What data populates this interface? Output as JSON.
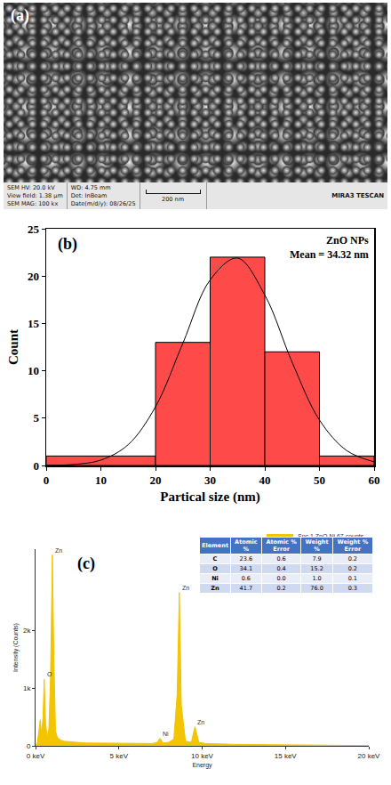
{
  "sem_image": {
    "label": "(a)",
    "info": [
      [
        "SEM HV: 20.0 kV",
        "View field: 1.38 µm",
        "SEM MAG: 100 kx"
      ],
      [
        "WD: 4.75 mm",
        "Det: InBeam",
        "Date(m/d/y): 08/26/25"
      ]
    ],
    "scale_bar": "200 nm",
    "brand": "MIRA3 TESCAN"
  },
  "chart_data": [
    {
      "type": "histogram",
      "panel_label": "(b)",
      "annotations": [
        "ZnO NPs",
        "Mean = 34.32 nm"
      ],
      "x_label": "Partical size (nm)",
      "y_label": "Count",
      "bins": [
        0,
        20,
        30,
        40,
        50,
        60
      ],
      "values": [
        1,
        13,
        22,
        12,
        1
      ],
      "color": "#ff4a4a",
      "fit": {
        "type": "line",
        "color": "#000000",
        "x": [
          0,
          5,
          10,
          15,
          20,
          25,
          30,
          35,
          40,
          45,
          50,
          55,
          60
        ],
        "values": [
          0.02,
          0.11,
          0.57,
          2.2,
          6.2,
          12.9,
          19.6,
          21.9,
          18.0,
          10.9,
          4.8,
          1.57,
          0.38
        ]
      },
      "xlim": [
        0,
        60
      ],
      "xticks": [
        0,
        10,
        20,
        30,
        40,
        50,
        60
      ],
      "ylim": [
        0,
        25
      ],
      "yticks": [
        0,
        5,
        10,
        15,
        20,
        25
      ],
      "grid": false
    },
    {
      "type": "area",
      "panel_label": "(c)",
      "x_label": "Energy",
      "y_label": "Intensity (Counts)",
      "series": [
        {
          "name": "Spc 1 ZnO Ni 67 counts",
          "color": "#f2c500",
          "x": [
            0,
            0.1,
            0.2,
            0.28,
            0.36,
            0.45,
            0.52,
            0.6,
            0.7,
            0.8,
            0.9,
            1.01,
            1.1,
            1.2,
            1.3,
            1.5,
            1.7,
            2.0,
            2.5,
            3,
            4,
            5,
            6,
            7,
            7.3,
            7.47,
            7.65,
            8,
            8.3,
            8.5,
            8.63,
            8.75,
            9,
            9.35,
            9.57,
            9.8,
            10.2,
            11,
            12,
            14,
            16,
            18,
            20
          ],
          "values": [
            0,
            50,
            250,
            450,
            200,
            500,
            1150,
            400,
            150,
            300,
            1200,
            3300,
            1500,
            250,
            150,
            100,
            80,
            70,
            60,
            50,
            45,
            40,
            35,
            40,
            60,
            130,
            50,
            60,
            120,
            900,
            2650,
            700,
            80,
            60,
            330,
            60,
            40,
            30,
            25,
            20,
            15,
            10,
            5
          ]
        }
      ],
      "peak_labels": [
        {
          "text": "Zn",
          "x": 1.01,
          "y": 3300
        },
        {
          "text": "O",
          "x": 0.52,
          "y": 1150
        },
        {
          "text": "Ni",
          "x": 7.47,
          "y": 130
        },
        {
          "text": "Zn",
          "x": 8.63,
          "y": 2650
        },
        {
          "text": "Zn",
          "x": 9.57,
          "y": 330
        }
      ],
      "xlim": [
        0,
        20
      ],
      "xticks": [
        {
          "value": 0,
          "label": "0 keV"
        },
        {
          "value": 5,
          "label": "5 keV"
        },
        {
          "value": 10,
          "label": "10 keV"
        },
        {
          "value": 15,
          "label": "15 keV"
        },
        {
          "value": 20,
          "label": "20 keV"
        }
      ],
      "ylim": [
        0,
        3400
      ],
      "yticks": [
        0,
        {
          "value": 1000,
          "label": "1k"
        },
        {
          "value": 2000,
          "label": "2k"
        }
      ],
      "grid": false,
      "legend": "top right",
      "table": {
        "columns": [
          "Element",
          "Atomic %",
          "Atomic % Error",
          "Weight %",
          "Weight % Error"
        ],
        "rows": [
          [
            "C",
            "23.6",
            "0.6",
            "7.9",
            "0.2"
          ],
          [
            "O",
            "34.1",
            "0.4",
            "15.2",
            "0.2"
          ],
          [
            "Ni",
            "0.6",
            "0.0",
            "1.0",
            "0.1"
          ],
          [
            "Zn",
            "41.7",
            "0.2",
            "76.0",
            "0.3"
          ]
        ]
      }
    }
  ]
}
